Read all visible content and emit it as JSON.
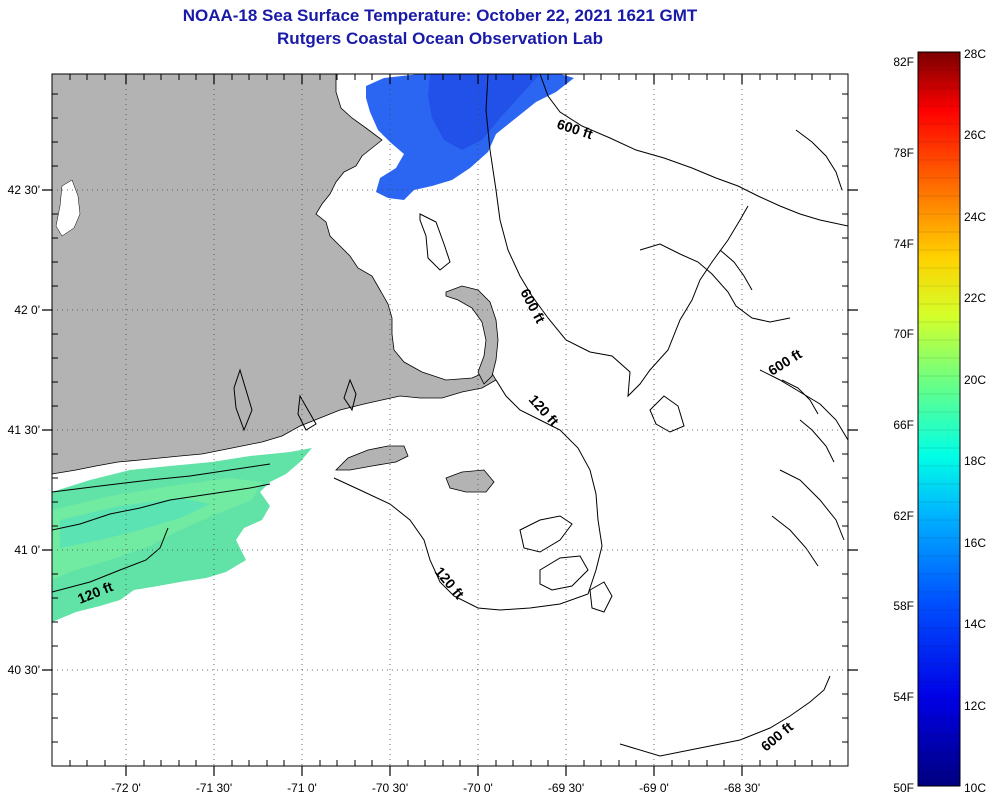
{
  "header": {
    "title": "NOAA-18 Sea Surface Temperature:  October 22, 2021 1621 GMT",
    "subtitle": "Rutgers Coastal Ocean Observation Lab"
  },
  "map": {
    "lon_labels": [
      "-72 0'",
      "-71 30'",
      "-71 0'",
      "-70 30'",
      "-70 0'",
      "-69 30'",
      "-69 0'",
      "-68 30'"
    ],
    "lat_labels": [
      "42 30'",
      "42 0'",
      "41 30'",
      "41 0'",
      "40 30'"
    ],
    "contour_labels": {
      "c600_north": "600 ft",
      "c600_mid": "600 ft",
      "c600_east": "600 ft",
      "c600_south": "600 ft",
      "c120_cape": "120 ft",
      "c120_south": "120 ft",
      "c120_west": "120 ft"
    },
    "colors": {
      "land": "#b3b3b3",
      "ocean": "#ffffff",
      "cold_water": "#1f5ef5",
      "warm_water": "#5fe6a0"
    }
  },
  "colorbar": {
    "fahrenheit_labels": [
      "82F",
      "78F",
      "74F",
      "70F",
      "66F",
      "62F",
      "58F",
      "54F",
      "50F"
    ],
    "celsius_labels": [
      "28C",
      "26C",
      "24C",
      "22C",
      "20C",
      "18C",
      "16C",
      "14C",
      "12C",
      "10C"
    ]
  }
}
